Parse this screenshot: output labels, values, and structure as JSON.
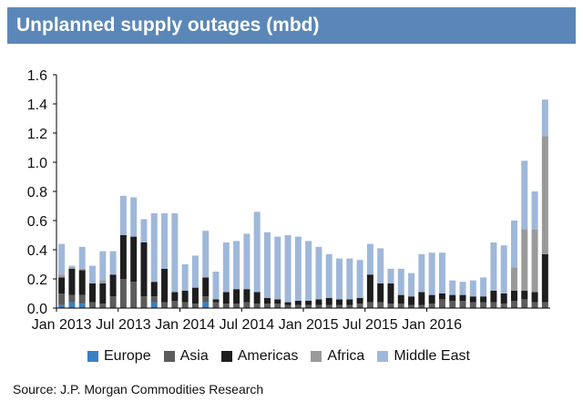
{
  "title": "Unplanned supply outages (mbd)",
  "source": "Source: J.P. Morgan Commodities Research",
  "chart_data": {
    "type": "bar",
    "stacked": true,
    "ylim": [
      0,
      1.6
    ],
    "yticks": [
      "0.0",
      "0.2",
      "0.4",
      "0.6",
      "0.8",
      "1.0",
      "1.2",
      "1.4",
      "1.6"
    ],
    "xtick_labels": [
      "Jan 2013",
      "Jul 2013",
      "Jan 2014",
      "Jul 2014",
      "Jan 2015",
      "Jul 2015",
      "Jan 2016"
    ],
    "categories": [
      "2013-01",
      "2013-02",
      "2013-03",
      "2013-04",
      "2013-05",
      "2013-06",
      "2013-07",
      "2013-08",
      "2013-09",
      "2013-10",
      "2013-11",
      "2013-12",
      "2014-01",
      "2014-02",
      "2014-03",
      "2014-04",
      "2014-05",
      "2014-06",
      "2014-07",
      "2014-08",
      "2014-09",
      "2014-10",
      "2014-11",
      "2014-12",
      "2015-01",
      "2015-02",
      "2015-03",
      "2015-04",
      "2015-05",
      "2015-06",
      "2015-07",
      "2015-08",
      "2015-09",
      "2015-10",
      "2015-11",
      "2015-12",
      "2016-01",
      "2016-02",
      "2016-03",
      "2016-04",
      "2016-05",
      "2016-06",
      "2016-07",
      "2016-08",
      "2016-09",
      "2016-10",
      "2016-11",
      "2016-12"
    ],
    "series": [
      {
        "name": "Europe",
        "color": "#3a7fc4",
        "values": [
          0.02,
          0.04,
          0.03,
          0,
          0,
          0,
          0,
          0,
          0,
          0.04,
          0,
          0,
          0,
          0,
          0.04,
          0,
          0,
          0,
          0,
          0,
          0,
          0,
          0,
          0,
          0,
          0,
          0,
          0,
          0,
          0,
          0,
          0,
          0,
          0,
          0,
          0,
          0,
          0,
          0,
          0,
          0,
          0,
          0,
          0,
          0,
          0,
          0,
          0
        ]
      },
      {
        "name": "Asia",
        "color": "#5c5c5c",
        "values": [
          0.08,
          0.05,
          0.06,
          0.04,
          0.03,
          0.08,
          0.2,
          0.18,
          0.08,
          0.04,
          0.04,
          0.05,
          0.04,
          0.03,
          0.04,
          0.04,
          0.03,
          0.03,
          0.04,
          0.03,
          0.03,
          0.03,
          0.02,
          0.02,
          0.02,
          0.02,
          0.02,
          0.02,
          0.02,
          0.03,
          0.04,
          0.04,
          0.03,
          0.03,
          0.02,
          0.02,
          0.03,
          0.06,
          0.05,
          0.05,
          0.04,
          0.04,
          0.04,
          0.03,
          0.05,
          0.06,
          0.04,
          0.04
        ]
      },
      {
        "name": "Americas",
        "color": "#1e1e1e",
        "values": [
          0.11,
          0.18,
          0.17,
          0.13,
          0.14,
          0.15,
          0.3,
          0.31,
          0.37,
          0.1,
          0.23,
          0.06,
          0.08,
          0.11,
          0.13,
          0.02,
          0.08,
          0.1,
          0.09,
          0.08,
          0.04,
          0.03,
          0.02,
          0.03,
          0.03,
          0.04,
          0.05,
          0.04,
          0.04,
          0.04,
          0.19,
          0.13,
          0.14,
          0.06,
          0.06,
          0.09,
          0.06,
          0.04,
          0.04,
          0.04,
          0.04,
          0.04,
          0.08,
          0.07,
          0.07,
          0.06,
          0.07,
          0.33
        ]
      },
      {
        "name": "Africa",
        "color": "#9a9a9a",
        "values": [
          0.02,
          0.01,
          0.01,
          0,
          0.02,
          0,
          0,
          0,
          0,
          0,
          0,
          0,
          0,
          0,
          0,
          0,
          0,
          0,
          0,
          0,
          0,
          0,
          0,
          0,
          0,
          0,
          0,
          0,
          0,
          0,
          0,
          0,
          0,
          0,
          0,
          0,
          0,
          0,
          0,
          0,
          0,
          0,
          0,
          0,
          0.16,
          0.42,
          0.43,
          0.81
        ]
      },
      {
        "name": "Middle East",
        "color": "#9fb8da",
        "values": [
          0.21,
          0.01,
          0.15,
          0.12,
          0.2,
          0.16,
          0.27,
          0.27,
          0.16,
          0.47,
          0.38,
          0.54,
          0.18,
          0.22,
          0.32,
          0.19,
          0.34,
          0.33,
          0.38,
          0.55,
          0.45,
          0.43,
          0.46,
          0.44,
          0.41,
          0.36,
          0.3,
          0.28,
          0.28,
          0.26,
          0.21,
          0.24,
          0.1,
          0.18,
          0.16,
          0.26,
          0.29,
          0.28,
          0.1,
          0.09,
          0.11,
          0.13,
          0.33,
          0.33,
          0.32,
          0.47,
          0.26,
          0.25
        ]
      }
    ]
  }
}
